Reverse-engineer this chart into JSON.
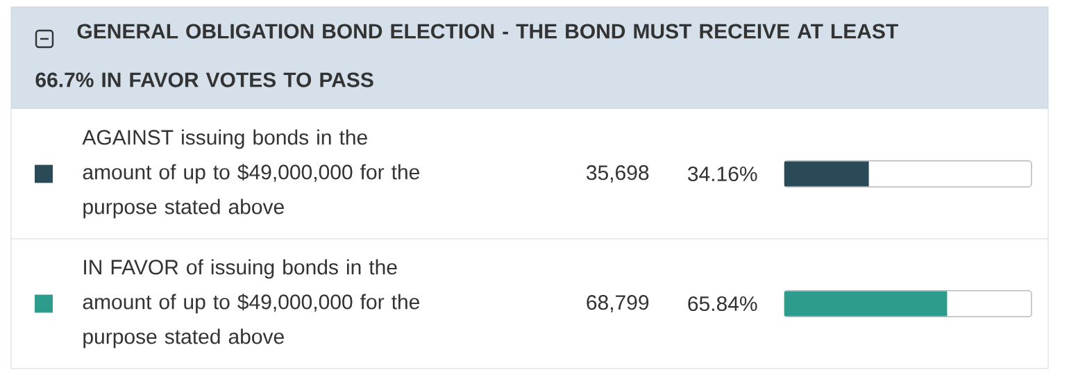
{
  "chart_data": {
    "type": "bar",
    "orientation": "horizontal",
    "title": "GENERAL OBLIGATION BOND ELECTION - THE BOND MUST RECEIVE AT LEAST 66.7% IN FAVOR VOTES TO PASS",
    "categories": [
      "AGAINST issuing bonds in the amount of up to $49,000,000 for the purpose stated above",
      "IN FAVOR of issuing bonds in the amount of up to $49,000,000 for the purpose stated above"
    ],
    "values": [
      34.16,
      65.84
    ],
    "colors": [
      "#2b4a57",
      "#2e9c8c"
    ],
    "value_labels": [
      "34.16%",
      "65.84%"
    ],
    "annotations": [
      "35,698",
      "68,799"
    ],
    "xlim": [
      0,
      100
    ]
  }
}
